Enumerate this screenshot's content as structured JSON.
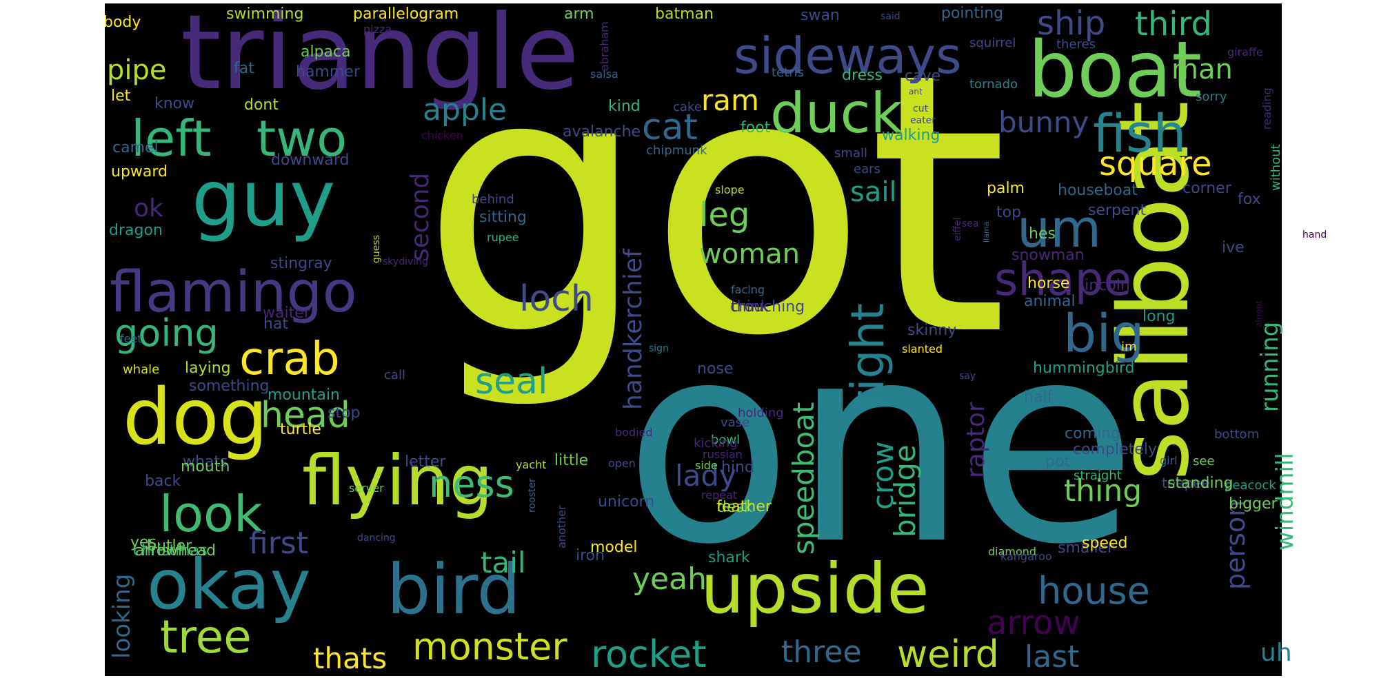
{
  "colors": {
    "background": "#000000",
    "page": "#ffffff",
    "palette": [
      "#440154",
      "#472878",
      "#3e4a89",
      "#31688e",
      "#26828e",
      "#1f9e89",
      "#35b779",
      "#6ece58",
      "#b5de2b",
      "#d0e11c",
      "#fde725"
    ]
  },
  "words": [
    {
      "text": "got",
      "color": "#cae11f"
    },
    {
      "text": "one",
      "color": "#26818e"
    },
    {
      "text": "triangle",
      "color": "#472a7a"
    },
    {
      "text": "sailboat",
      "color": "#bddf26"
    },
    {
      "text": "boat",
      "color": "#6ece58"
    },
    {
      "text": "guy",
      "color": "#1f9e89"
    },
    {
      "text": "dog",
      "color": "#d8e219"
    },
    {
      "text": "flying",
      "color": "#b5de2b"
    },
    {
      "text": "okay",
      "color": "#26828e"
    },
    {
      "text": "bird",
      "color": "#2c728e"
    },
    {
      "text": "upside",
      "color": "#b5de2b"
    },
    {
      "text": "flamingo",
      "color": "#443983"
    },
    {
      "text": "duck",
      "color": "#6ece58"
    },
    {
      "text": "sideways",
      "color": "#3e4a89"
    },
    {
      "text": "fish",
      "color": "#25858e"
    },
    {
      "text": "left",
      "color": "#35b779"
    },
    {
      "text": "two",
      "color": "#35b779"
    },
    {
      "text": "crab",
      "color": "#fde725"
    },
    {
      "text": "look",
      "color": "#3fbc73"
    },
    {
      "text": "tree",
      "color": "#a0da39"
    },
    {
      "text": "um",
      "color": "#31688e"
    },
    {
      "text": "shape",
      "color": "#482878"
    },
    {
      "text": "big",
      "color": "#31688e"
    },
    {
      "text": "right",
      "color": "#26828e"
    },
    {
      "text": "monster",
      "color": "#d0e11c"
    },
    {
      "text": "rocket",
      "color": "#1f9e89"
    },
    {
      "text": "weird",
      "color": "#b5de2b"
    },
    {
      "text": "house",
      "color": "#31688e"
    },
    {
      "text": "going",
      "color": "#35b779"
    },
    {
      "text": "head",
      "color": "#6ece58"
    },
    {
      "text": "square",
      "color": "#fde725"
    },
    {
      "text": "ship",
      "color": "#3e4a89"
    },
    {
      "text": "third",
      "color": "#35b779"
    },
    {
      "text": "cat",
      "color": "#31688e"
    },
    {
      "text": "apple",
      "color": "#26828e"
    },
    {
      "text": "leg",
      "color": "#6ece58"
    },
    {
      "text": "woman",
      "color": "#6ece58"
    },
    {
      "text": "loch",
      "color": "#3e4a89"
    },
    {
      "text": "seal",
      "color": "#1f9e89"
    },
    {
      "text": "ness",
      "color": "#3fbc73"
    },
    {
      "text": "tail",
      "color": "#35b779"
    },
    {
      "text": "first",
      "color": "#3e4a89"
    },
    {
      "text": "yeah",
      "color": "#6ece58"
    },
    {
      "text": "three",
      "color": "#31688e"
    },
    {
      "text": "thats",
      "color": "#fde725"
    },
    {
      "text": "last",
      "color": "#31688e"
    },
    {
      "text": "arrow",
      "color": "#440154"
    },
    {
      "text": "thing",
      "color": "#6ece58"
    },
    {
      "text": "lady",
      "color": "#3e4a89"
    },
    {
      "text": "bunny",
      "color": "#3e4a89"
    },
    {
      "text": "ram",
      "color": "#fde725"
    },
    {
      "text": "man",
      "color": "#6ece58"
    },
    {
      "text": "pipe",
      "color": "#b5de2b"
    },
    {
      "text": "sail",
      "color": "#1f9e89"
    },
    {
      "text": "second",
      "color": "#472878"
    },
    {
      "text": "handkerchief",
      "color": "#3e4a89"
    },
    {
      "text": "speedboat",
      "color": "#3fbc73"
    },
    {
      "text": "crow",
      "color": "#1f9e89"
    },
    {
      "text": "bridge",
      "color": "#35b779"
    },
    {
      "text": "raptor",
      "color": "#482878"
    },
    {
      "text": "running",
      "color": "#35b779"
    },
    {
      "text": "windmill",
      "color": "#35b779"
    },
    {
      "text": "person",
      "color": "#3e4a89"
    },
    {
      "text": "uh",
      "color": "#26828e"
    },
    {
      "text": "ok",
      "color": "#472878"
    },
    {
      "text": "looking",
      "color": "#31688e"
    },
    {
      "text": "body",
      "color": "#fde725"
    },
    {
      "text": "swimming",
      "color": "#b5de2b"
    },
    {
      "text": "parallelogram",
      "color": "#fde725"
    },
    {
      "text": "arm",
      "color": "#6ece58"
    },
    {
      "text": "batman",
      "color": "#b5de2b"
    },
    {
      "text": "swan",
      "color": "#3e4a89"
    },
    {
      "text": "said",
      "color": "#3e4a89"
    },
    {
      "text": "pointing",
      "color": "#31688e"
    },
    {
      "text": "alpaca",
      "color": "#6ece58"
    },
    {
      "text": "pizza",
      "color": "#472878"
    },
    {
      "text": "abraham",
      "color": "#472878"
    },
    {
      "text": "squirrel",
      "color": "#3e4a89"
    },
    {
      "text": "theres",
      "color": "#3e4a89"
    },
    {
      "text": "giraffe",
      "color": "#472878"
    },
    {
      "text": "fat",
      "color": "#31688e"
    },
    {
      "text": "hammer",
      "color": "#3e4a89"
    },
    {
      "text": "tetris",
      "color": "#31688e"
    },
    {
      "text": "dress",
      "color": "#35b779"
    },
    {
      "text": "cave",
      "color": "#3e4a89"
    },
    {
      "text": "salsa",
      "color": "#31688e"
    },
    {
      "text": "ant",
      "color": "#3e4a89"
    },
    {
      "text": "tornado",
      "color": "#26828e"
    },
    {
      "text": "let",
      "color": "#fde725"
    },
    {
      "text": "know",
      "color": "#3e4a89"
    },
    {
      "text": "dont",
      "color": "#b5de2b"
    },
    {
      "text": "kind",
      "color": "#35b779"
    },
    {
      "text": "cake",
      "color": "#3e4a89"
    },
    {
      "text": "cut",
      "color": "#3e4a89"
    },
    {
      "text": "eater",
      "color": "#3e4a89"
    },
    {
      "text": "sorry",
      "color": "#26828e"
    },
    {
      "text": "reading",
      "color": "#472878"
    },
    {
      "text": "chicken",
      "color": "#440154"
    },
    {
      "text": "avalanche",
      "color": "#3e4a89"
    },
    {
      "text": "foot",
      "color": "#35b779"
    },
    {
      "text": "camel",
      "color": "#31688e"
    },
    {
      "text": "downward",
      "color": "#3e4a89"
    },
    {
      "text": "chipmunk",
      "color": "#31688e"
    },
    {
      "text": "walking",
      "color": "#1f9e89"
    },
    {
      "text": "small",
      "color": "#3e4a89"
    },
    {
      "text": "ears",
      "color": "#3e4a89"
    },
    {
      "text": "without",
      "color": "#35b779"
    },
    {
      "text": "upward",
      "color": "#fde725"
    },
    {
      "text": "palm",
      "color": "#fde725"
    },
    {
      "text": "houseboat",
      "color": "#31688e"
    },
    {
      "text": "corner",
      "color": "#3e4a89"
    },
    {
      "text": "fox",
      "color": "#3e4a89"
    },
    {
      "text": "behind",
      "color": "#3e4a89"
    },
    {
      "text": "slope",
      "color": "#b5de2b"
    },
    {
      "text": "sitting",
      "color": "#31688e"
    },
    {
      "text": "top",
      "color": "#3e4a89"
    },
    {
      "text": "sea",
      "color": "#472878"
    },
    {
      "text": "serpent",
      "color": "#3e4a89"
    },
    {
      "text": "dragon",
      "color": "#1f9e89"
    },
    {
      "text": "rupee",
      "color": "#35b779"
    },
    {
      "text": "eiffel",
      "color": "#472878"
    },
    {
      "text": "llama",
      "color": "#31688e"
    },
    {
      "text": "hes",
      "color": "#6ece58"
    },
    {
      "text": "ive",
      "color": "#3e4a89"
    },
    {
      "text": "hand",
      "color": "#440154"
    },
    {
      "text": "stingray",
      "color": "#3e4a89"
    },
    {
      "text": "guess",
      "color": "#b5de2b"
    },
    {
      "text": "snowman",
      "color": "#472878"
    },
    {
      "text": "crouching",
      "color": "#3e4a89"
    },
    {
      "text": "skydiving",
      "color": "#472878"
    },
    {
      "text": "horse",
      "color": "#fde725"
    },
    {
      "text": "lincoln",
      "color": "#472878"
    },
    {
      "text": "facing",
      "color": "#31688e"
    },
    {
      "text": "think",
      "color": "#472878"
    },
    {
      "text": "animal",
      "color": "#31688e"
    },
    {
      "text": "long",
      "color": "#1f9e89"
    },
    {
      "text": "alright",
      "color": "#440154"
    },
    {
      "text": "waiter",
      "color": "#472878"
    },
    {
      "text": "hat",
      "color": "#3e4a89"
    },
    {
      "text": "skinny",
      "color": "#3e4a89"
    },
    {
      "text": "feet",
      "color": "#31688e"
    },
    {
      "text": "sign",
      "color": "#26828e"
    },
    {
      "text": "slanted",
      "color": "#fde725"
    },
    {
      "text": "im",
      "color": "#fde725"
    },
    {
      "text": "nose",
      "color": "#3e4a89"
    },
    {
      "text": "hummingbird",
      "color": "#1f9e89"
    },
    {
      "text": "laying",
      "color": "#b5de2b"
    },
    {
      "text": "whale",
      "color": "#d0e11c"
    },
    {
      "text": "say",
      "color": "#3e4a89"
    },
    {
      "text": "something",
      "color": "#3e4a89"
    },
    {
      "text": "mountain",
      "color": "#1f9e89"
    },
    {
      "text": "half",
      "color": "#31688e"
    },
    {
      "text": "call",
      "color": "#3e4a89"
    },
    {
      "text": "holding",
      "color": "#472878"
    },
    {
      "text": "stop",
      "color": "#3e4a89"
    },
    {
      "text": "vase",
      "color": "#3e4a89"
    },
    {
      "text": "turtle",
      "color": "#fde725"
    },
    {
      "text": "bowl",
      "color": "#35b779"
    },
    {
      "text": "bodied",
      "color": "#472878"
    },
    {
      "text": "coming",
      "color": "#31688e"
    },
    {
      "text": "bottom",
      "color": "#3e4a89"
    },
    {
      "text": "whats",
      "color": "#3e4a89"
    },
    {
      "text": "kicking",
      "color": "#472878"
    },
    {
      "text": "completely",
      "color": "#3e4a89"
    },
    {
      "text": "mouth",
      "color": "#6ece58"
    },
    {
      "text": "russian",
      "color": "#472878"
    },
    {
      "text": "letter",
      "color": "#3e4a89"
    },
    {
      "text": "hind",
      "color": "#3e4a89"
    },
    {
      "text": "side",
      "color": "#6ece58"
    },
    {
      "text": "pot",
      "color": "#31688e"
    },
    {
      "text": "girl",
      "color": "#31688e"
    },
    {
      "text": "yacht",
      "color": "#b5de2b"
    },
    {
      "text": "open",
      "color": "#3e4a89"
    },
    {
      "text": "little",
      "color": "#6ece58"
    },
    {
      "text": "see",
      "color": "#6ece58"
    },
    {
      "text": "peacock",
      "color": "#1f9e89"
    },
    {
      "text": "back",
      "color": "#3e4a89"
    },
    {
      "text": "teepee",
      "color": "#3e4a89"
    },
    {
      "text": "server",
      "color": "#6ece58"
    },
    {
      "text": "standing",
      "color": "#6ece58"
    },
    {
      "text": "unicorn",
      "color": "#3e4a89"
    },
    {
      "text": "desk",
      "color": "#6ece58"
    },
    {
      "text": "bigger",
      "color": "#6ece58"
    },
    {
      "text": "yes",
      "color": "#6ece58"
    },
    {
      "text": "smaller",
      "color": "#3e4a89"
    },
    {
      "text": "butler",
      "color": "#6ece58"
    },
    {
      "text": "another",
      "color": "#3e4a89"
    },
    {
      "text": "repeat",
      "color": "#472878"
    },
    {
      "text": "feather",
      "color": "#d0e11c"
    },
    {
      "text": "diamond",
      "color": "#6ece58"
    },
    {
      "text": "speed",
      "color": "#fde725"
    },
    {
      "text": "straight",
      "color": "#35b779"
    },
    {
      "text": "rooster",
      "color": "#31688e"
    },
    {
      "text": "dancing",
      "color": "#3e4a89"
    },
    {
      "text": "christmas",
      "color": "#35b779"
    },
    {
      "text": "arrowhead",
      "color": "#6ece58"
    },
    {
      "text": "model",
      "color": "#fde725"
    },
    {
      "text": "iron",
      "color": "#3e4a89"
    },
    {
      "text": "shark",
      "color": "#1f9e89"
    },
    {
      "text": "kangaroo",
      "color": "#3e4a89"
    }
  ]
}
